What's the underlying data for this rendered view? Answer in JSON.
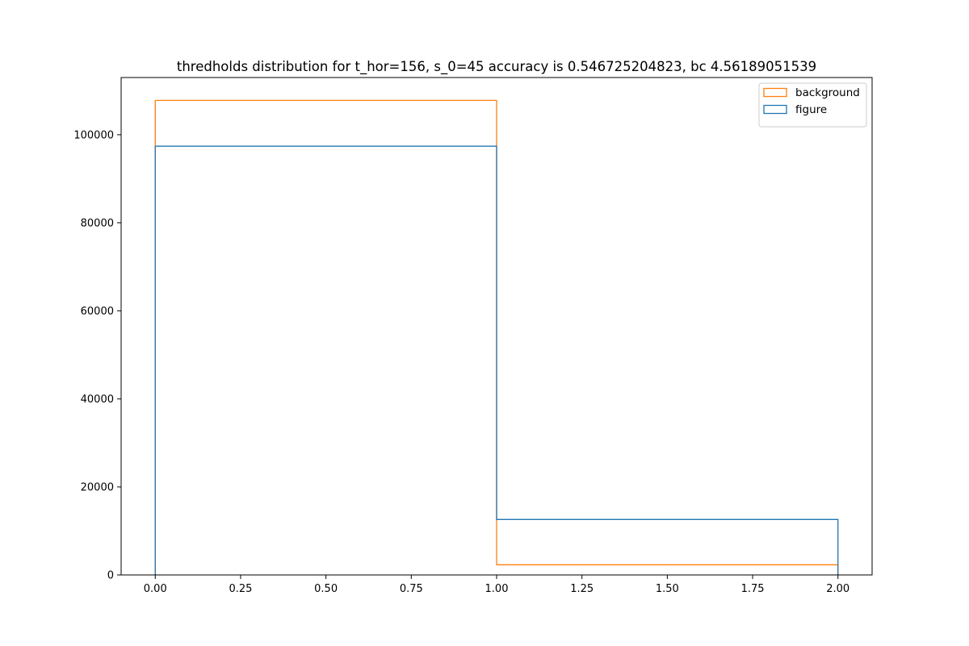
{
  "chart_data": {
    "type": "histogram-step",
    "title": "thredholds distribution for t_hor=156, s_0=45 accuracy is 0.546725204823, bc 4.56189051539",
    "xlabel": "",
    "ylabel": "",
    "xlim": [
      -0.1,
      2.1
    ],
    "ylim": [
      0,
      113000
    ],
    "xticks": [
      0.0,
      0.25,
      0.5,
      0.75,
      1.0,
      1.25,
      1.5,
      1.75,
      2.0
    ],
    "xtick_labels": [
      "0.00",
      "0.25",
      "0.50",
      "0.75",
      "1.00",
      "1.25",
      "1.50",
      "1.75",
      "2.00"
    ],
    "yticks": [
      0,
      20000,
      40000,
      60000,
      80000,
      100000
    ],
    "ytick_labels": [
      "0",
      "20000",
      "40000",
      "60000",
      "80000",
      "100000"
    ],
    "bin_edges": [
      0,
      1,
      2
    ],
    "series": [
      {
        "name": "background",
        "color": "#ff7f0e",
        "values": [
          107800,
          2300
        ]
      },
      {
        "name": "figure",
        "color": "#1f77b4",
        "values": [
          97400,
          12600
        ]
      }
    ],
    "legend": {
      "position": "top-right",
      "entries": [
        "background",
        "figure"
      ]
    },
    "grid": false
  }
}
